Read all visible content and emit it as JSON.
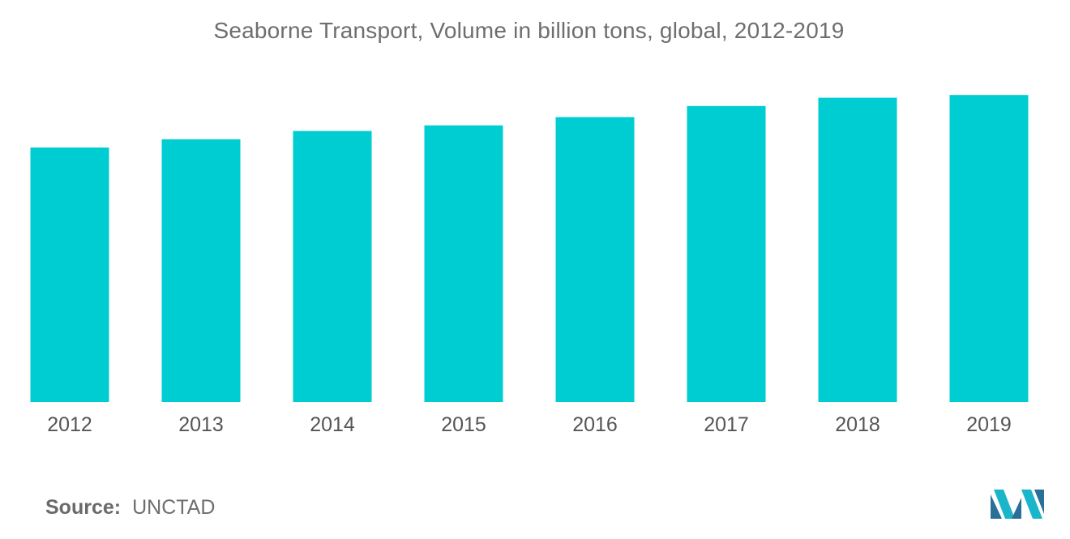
{
  "chart_data": {
    "type": "bar",
    "title": "Seaborne Transport,  Volume in billion tons, global, 2012-2019",
    "categories": [
      "2012",
      "2013",
      "2014",
      "2015",
      "2016",
      "2017",
      "2018",
      "2019"
    ],
    "values": [
      9.2,
      9.5,
      9.8,
      10.0,
      10.3,
      10.7,
      11.0,
      11.1
    ],
    "xlabel": "",
    "ylabel": "",
    "ylim": [
      0,
      12.6
    ],
    "grid": false,
    "legend": "none",
    "bar_color": "#00cdd1"
  },
  "source": {
    "label": "Source:",
    "value": "UNCTAD"
  },
  "colors": {
    "bar": "#00cdd1",
    "text": "#6e6e6e",
    "logo_dark": "#2a6f97",
    "logo_light": "#1bb5c9"
  },
  "logo": {
    "icon": "mordor-intelligence-logo-icon"
  }
}
